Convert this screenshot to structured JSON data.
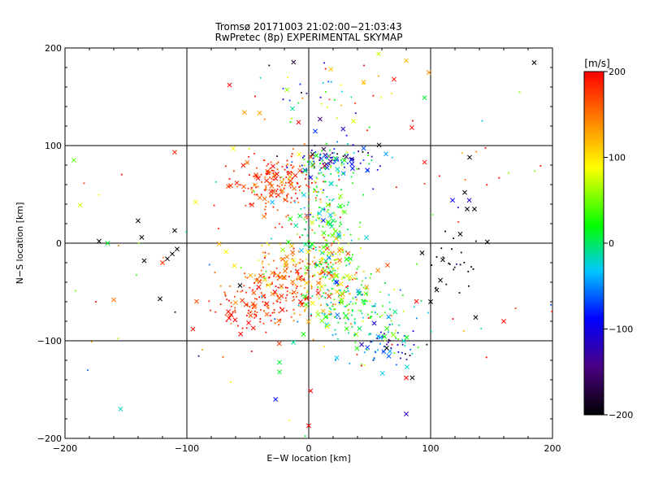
{
  "chart_data": {
    "type": "scatter",
    "title": "Tromsø 20171003 21:02:00−21:03:43",
    "subtitle": "RwPretec (8p) EXPERIMENTAL SKYMAP",
    "xlabel": "E−W location [km]",
    "ylabel": "N−S location [km]",
    "xlim": [
      -200,
      200
    ],
    "ylim": [
      -200,
      200
    ],
    "xticks": [
      -200,
      -100,
      0,
      100,
      200
    ],
    "yticks": [
      -200,
      -100,
      0,
      100,
      200
    ],
    "xtick_labels": [
      "−200",
      "−100",
      "0",
      "100",
      "200"
    ],
    "ytick_labels": [
      "−200",
      "−100",
      "0",
      "100",
      "200"
    ],
    "grid": true,
    "colorbar": {
      "label": "[m/s]",
      "range": [
        -200,
        200
      ],
      "ticks": [
        200,
        100,
        0,
        -100,
        -200
      ],
      "tick_labels": [
        "200",
        "100",
        "0",
        "−100",
        "−200"
      ],
      "colors": [
        "#000000",
        "#4b0082",
        "#0000ff",
        "#00c8ff",
        "#00ff00",
        "#ffff00",
        "#ff8000",
        "#ff0000"
      ]
    },
    "markers": [
      "dot",
      "cross"
    ],
    "clusters": [
      {
        "cx": -28,
        "cy": 62,
        "sx": 18,
        "sy": 16,
        "vmean": 175,
        "vsd": 25,
        "n": 190
      },
      {
        "cx": 22,
        "cy": 85,
        "sx": 16,
        "sy": 8,
        "vmean": -60,
        "vsd": 60,
        "n": 120
      },
      {
        "cx": 12,
        "cy": 30,
        "sx": 12,
        "sy": 30,
        "vmean": 20,
        "vsd": 40,
        "n": 150
      },
      {
        "cx": -15,
        "cy": -35,
        "sx": 22,
        "sy": 18,
        "vmean": 160,
        "vsd": 40,
        "n": 200
      },
      {
        "cx": -45,
        "cy": -65,
        "sx": 18,
        "sy": 12,
        "vmean": 185,
        "vsd": 20,
        "n": 110
      },
      {
        "cx": 20,
        "cy": -30,
        "sx": 14,
        "sy": 25,
        "vmean": 60,
        "vsd": 60,
        "n": 170
      },
      {
        "cx": 40,
        "cy": -70,
        "sx": 20,
        "sy": 18,
        "vmean": 10,
        "vsd": 40,
        "n": 140
      },
      {
        "cx": 65,
        "cy": -105,
        "sx": 15,
        "sy": 12,
        "vmean": -80,
        "vsd": 60,
        "n": 60
      },
      {
        "cx": 125,
        "cy": -20,
        "sx": 12,
        "sy": 20,
        "vmean": -200,
        "vsd": 5,
        "n": 25
      },
      {
        "cx": 15,
        "cy": 150,
        "sx": 30,
        "sy": 20,
        "vmean": 40,
        "vsd": 120,
        "n": 45
      },
      {
        "cx": 0,
        "cy": 0,
        "sx": 110,
        "sy": 110,
        "vmean": 100,
        "vsd": 130,
        "n": 120
      }
    ],
    "highlighted_points": [
      {
        "x": -65,
        "y": 162,
        "v": 200
      },
      {
        "x": 70,
        "y": 168,
        "v": 190
      },
      {
        "x": 80,
        "y": 187,
        "v": 120
      },
      {
        "x": 95,
        "y": 149,
        "v": 10
      },
      {
        "x": 45,
        "y": 165,
        "v": 120
      },
      {
        "x": 185,
        "y": 185,
        "v": -200
      },
      {
        "x": 132,
        "y": 88,
        "v": -200
      },
      {
        "x": 128,
        "y": 52,
        "v": -200
      },
      {
        "x": 130,
        "y": 35,
        "v": -200
      },
      {
        "x": 136,
        "y": 35,
        "v": -200
      },
      {
        "x": 95,
        "y": 83,
        "v": 190
      },
      {
        "x": 118,
        "y": 44,
        "v": -90
      },
      {
        "x": -140,
        "y": 23,
        "v": -200
      },
      {
        "x": -137,
        "y": 6,
        "v": -200
      },
      {
        "x": -165,
        "y": 0,
        "v": 10
      },
      {
        "x": -172,
        "y": 2,
        "v": -200
      },
      {
        "x": -110,
        "y": 13,
        "v": -200
      },
      {
        "x": -108,
        "y": -6,
        "v": -200
      },
      {
        "x": -112,
        "y": -11,
        "v": -200
      },
      {
        "x": -116,
        "y": -16,
        "v": -200
      },
      {
        "x": -120,
        "y": -20,
        "v": 180
      },
      {
        "x": -135,
        "y": -18,
        "v": -200
      },
      {
        "x": -122,
        "y": -57,
        "v": -200
      },
      {
        "x": -95,
        "y": -88,
        "v": 200
      },
      {
        "x": -24,
        "y": -122,
        "v": 10
      },
      {
        "x": -24,
        "y": -132,
        "v": 10
      },
      {
        "x": 0,
        "y": -187,
        "v": 200
      },
      {
        "x": 80,
        "y": -138,
        "v": 200
      },
      {
        "x": 85,
        "y": -138,
        "v": -200
      },
      {
        "x": 80,
        "y": -175,
        "v": -120
      },
      {
        "x": 160,
        "y": -80,
        "v": 200
      },
      {
        "x": 137,
        "y": -76,
        "v": -200
      },
      {
        "x": 100,
        "y": -60,
        "v": -200
      },
      {
        "x": 105,
        "y": -48,
        "v": -200
      },
      {
        "x": 108,
        "y": -38,
        "v": -200
      },
      {
        "x": 93,
        "y": -10,
        "v": -200
      },
      {
        "x": -62,
        "y": 97,
        "v": 90
      }
    ]
  }
}
